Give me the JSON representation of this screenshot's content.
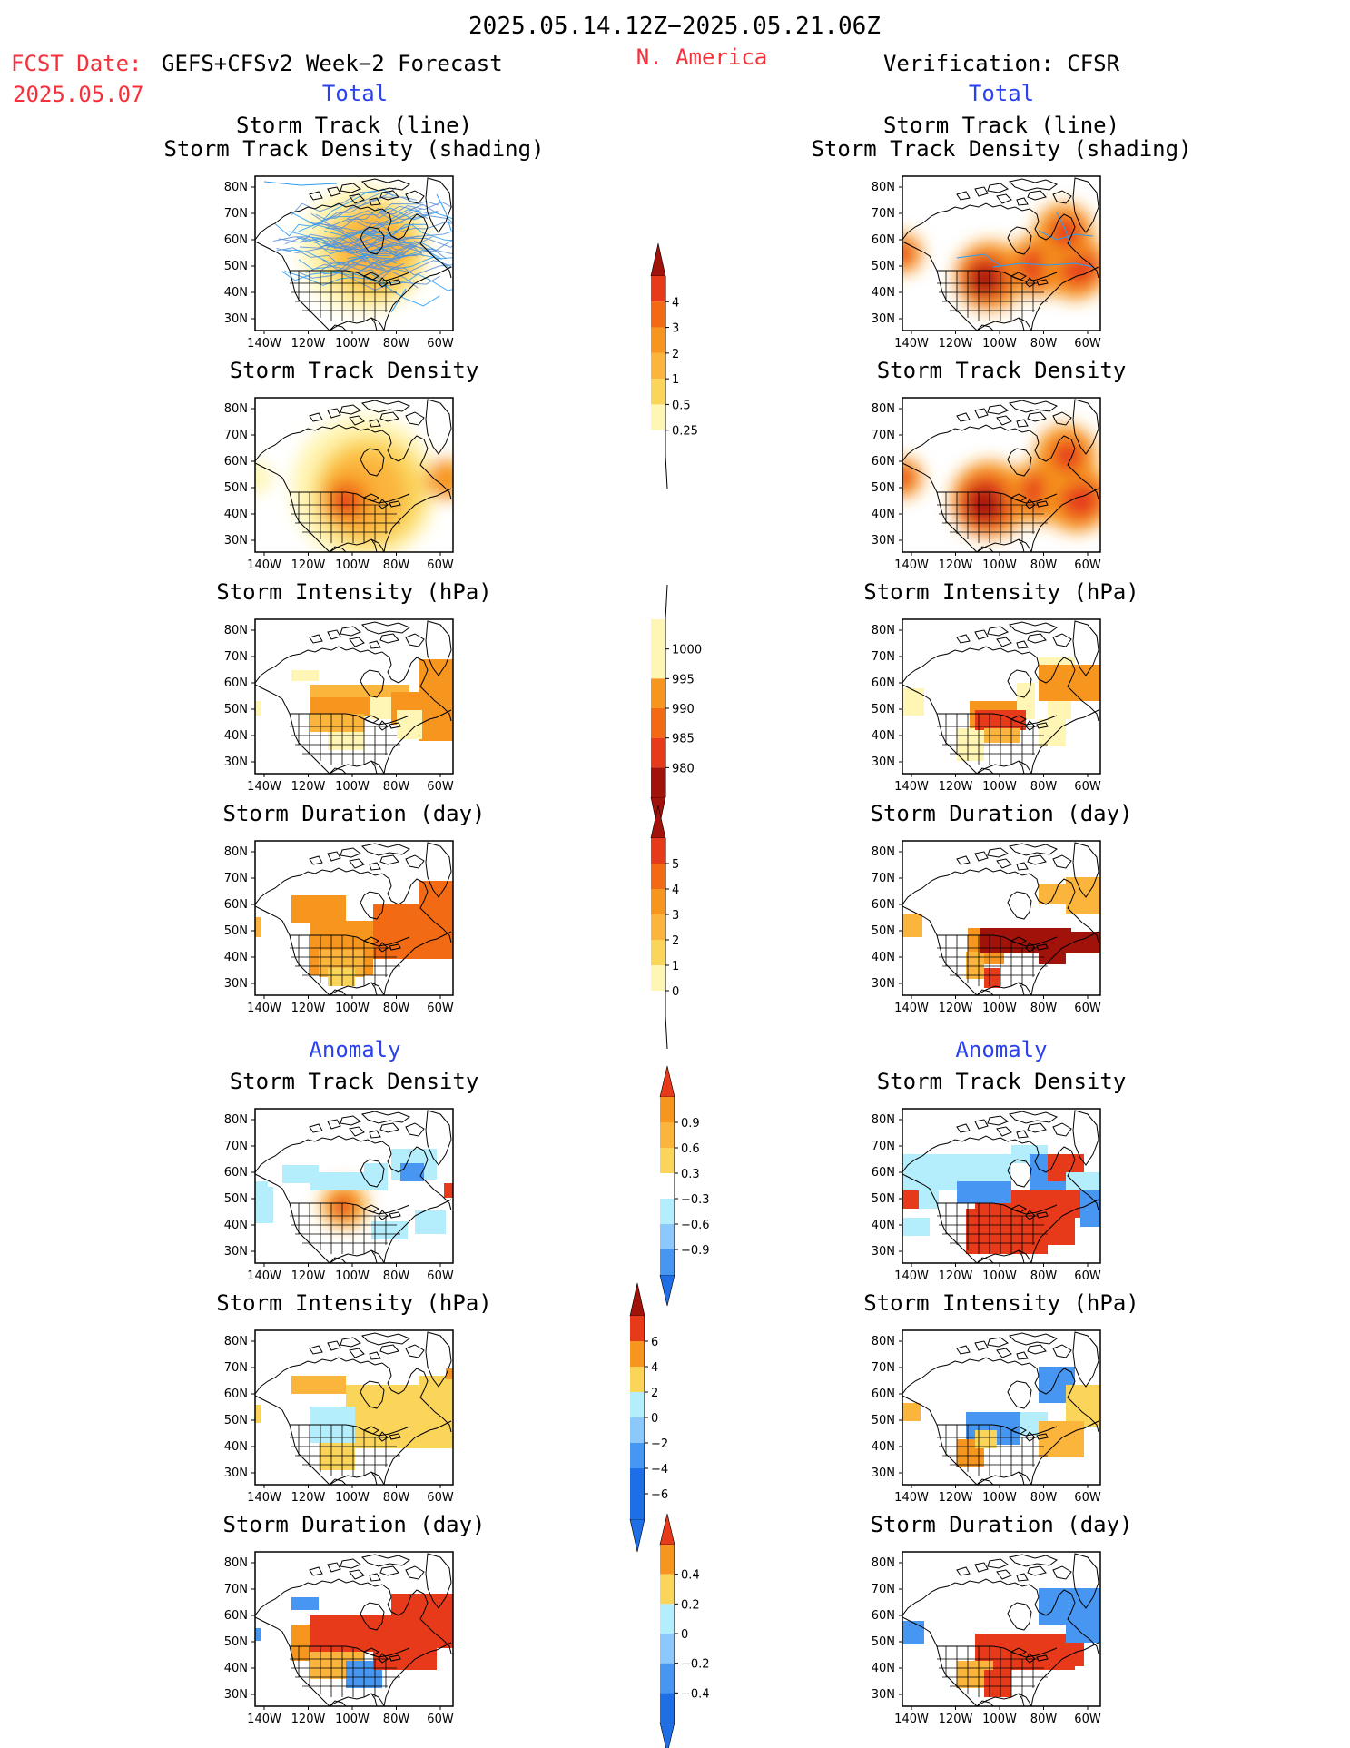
{
  "header": {
    "date_range": "2025.05.14.12Z−2025.05.21.06Z",
    "fcst_label": "FCST Date:",
    "fcst_model": "GEFS+CFSv2 Week−2 Forecast",
    "fcst_date": "2025.05.07",
    "region": "N. America",
    "verification": "Verification: CFSR"
  },
  "sections": {
    "total": "Total",
    "anomaly": "Anomaly"
  },
  "panel_titles": {
    "track_line": "Storm Track (line)",
    "track_density_shading": "Storm Track Density (shading)",
    "track_density": "Storm Track Density",
    "intensity": "Storm Intensity (hPa)",
    "duration": "Storm Duration (day)"
  },
  "axes": {
    "lat_labels": [
      "80N",
      "70N",
      "60N",
      "50N",
      "40N",
      "30N"
    ],
    "lon_labels": [
      "140W",
      "120W",
      "100W",
      "80W",
      "60W"
    ]
  },
  "colorbars": {
    "density_total": [
      "4",
      "3",
      "2",
      "1",
      "0.5",
      "0.25"
    ],
    "intensity_total": [
      "1000",
      "995",
      "990",
      "985",
      "980"
    ],
    "duration_total": [
      "5",
      "4",
      "3",
      "2",
      "1",
      "0"
    ],
    "density_anom": [
      "0.9",
      "0.6",
      "0.3",
      "−0.3",
      "−0.6",
      "−0.9"
    ],
    "intensity_anom": [
      "6",
      "4",
      "2",
      "0",
      "−2",
      "−4",
      "−6"
    ],
    "duration_anom": [
      "0.4",
      "0.2",
      "0",
      "−0.2",
      "−0.4"
    ]
  },
  "colors": {
    "yellow_light": "#fff5b4",
    "yellow": "#fbd55a",
    "orange_light": "#fbb43c",
    "orange": "#f7961e",
    "orange_dark": "#f26a14",
    "red": "#e63a1a",
    "dark_red": "#a0120a",
    "blue_light": "#b4eefc",
    "blue_mid": "#8cc8fa",
    "blue": "#4696f2",
    "blue_dark": "#1e6ee6",
    "track_line": "#2a9df4",
    "header_red": "#f5303a",
    "section_blue": "#2a41f0"
  }
}
